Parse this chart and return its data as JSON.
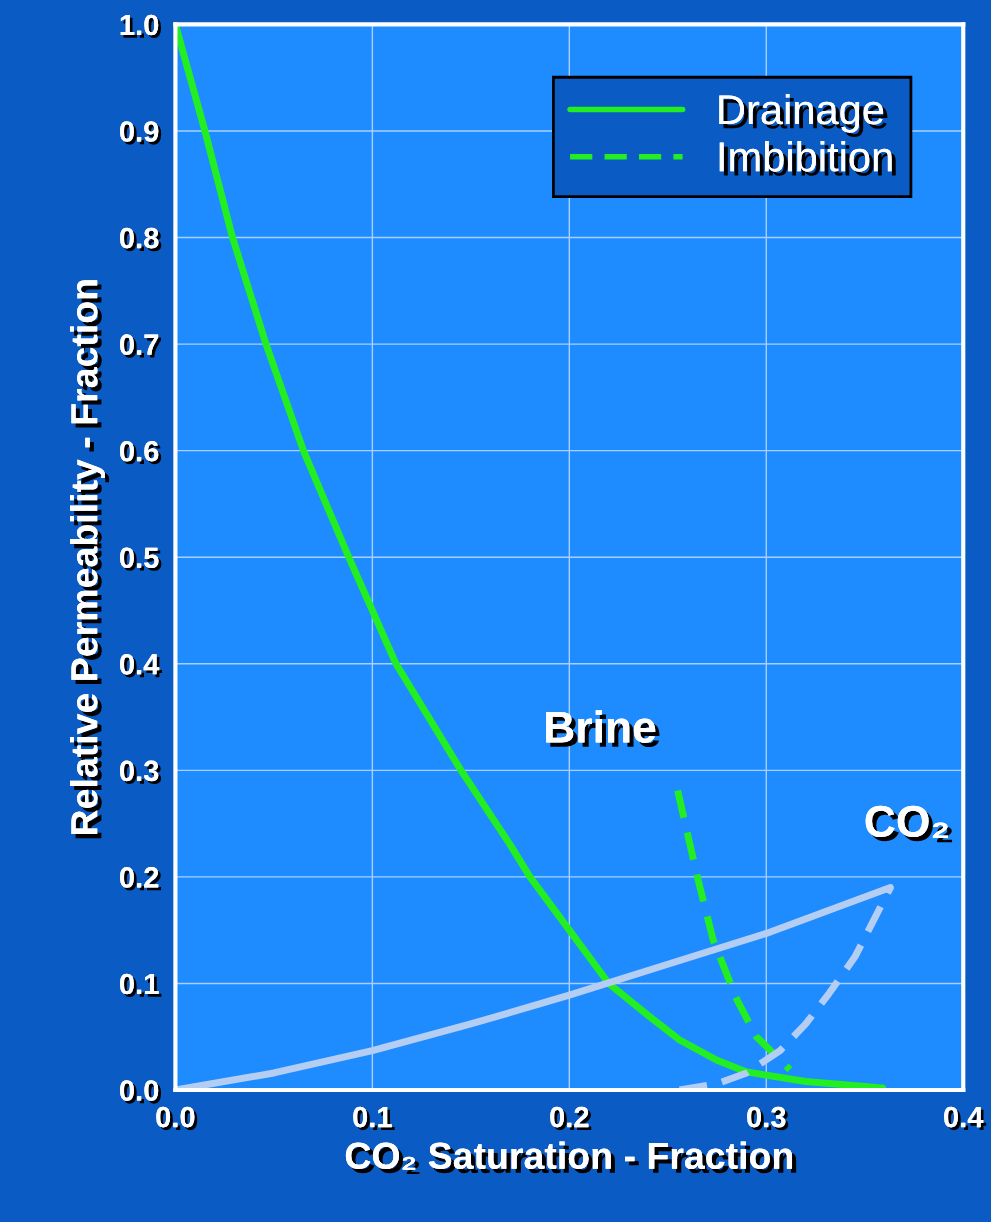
{
  "chart_data": {
    "type": "line",
    "xlabel": "CO₂ Saturation - Fraction",
    "ylabel": "Relative Permeability - Fraction",
    "xlim": [
      0,
      0.4
    ],
    "ylim": [
      0,
      1.0
    ],
    "xticks": [
      {
        "value": 0,
        "label": "0.0"
      },
      0.1,
      0.2,
      0.3,
      0.4
    ],
    "yticks": [
      {
        "value": 0,
        "label": "0.0"
      },
      0.1,
      0.2,
      0.3,
      0.4,
      0.5,
      0.6,
      0.7,
      0.8,
      0.9,
      {
        "value": 1,
        "label": "1.0"
      }
    ],
    "grid": true,
    "legend": "top right",
    "marker": "none",
    "series": [
      {
        "name": "Drainage",
        "color": "#22ee22",
        "line_style": "solid",
        "x": [
          0,
          0.015,
          0.029,
          0.046,
          0.065,
          0.088,
          0.112,
          0.145,
          0.17,
          0.18,
          0.2,
          0.22,
          0.24,
          0.256,
          0.275,
          0.29,
          0.32,
          0.359
        ],
        "values": [
          1.0,
          0.9,
          0.8,
          0.7,
          0.6,
          0.5,
          0.4,
          0.3,
          0.23,
          0.2,
          0.15,
          0.1,
          0.07,
          0.047,
          0.028,
          0.017,
          0.008,
          0.002
        ]
      },
      {
        "name": "Imbibition",
        "color": "#22ee22",
        "line_style": "dashed",
        "x": [
          0.255,
          0.265,
          0.273,
          0.285,
          0.295,
          0.312
        ],
        "values": [
          0.281,
          0.2,
          0.141,
          0.085,
          0.05,
          0.019
        ]
      },
      {
        "color": "#b4cdf2",
        "line_style": "solid",
        "x": [
          0,
          0.05,
          0.1,
          0.15,
          0.2,
          0.25,
          0.3,
          0.363
        ],
        "values": [
          0,
          0.016,
          0.037,
          0.062,
          0.089,
          0.118,
          0.147,
          0.19
        ]
      },
      {
        "color": "#b4cdf2",
        "line_style": "dashed",
        "x": [
          0.256,
          0.275,
          0.29,
          0.307,
          0.32,
          0.332,
          0.345,
          0.363
        ],
        "values": [
          0,
          0.006,
          0.016,
          0.037,
          0.062,
          0.091,
          0.125,
          0.19
        ]
      }
    ],
    "annotations": [
      "Brine",
      "CO₂"
    ]
  }
}
